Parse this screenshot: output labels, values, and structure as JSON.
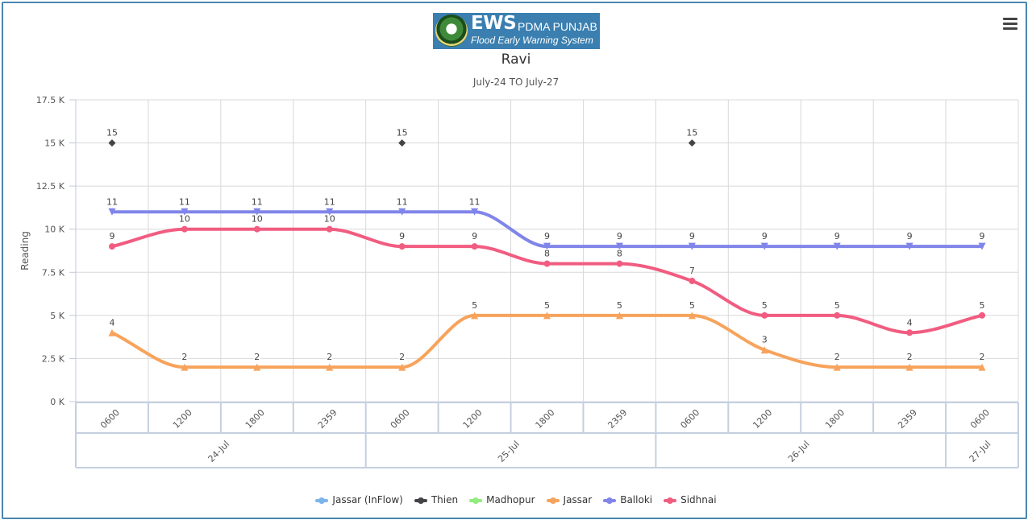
{
  "header": {
    "logo_main": "EWS",
    "logo_org": "PDMA PUNJAB",
    "logo_tagline": "Flood Early Warning System"
  },
  "icons": {
    "menu": "hamburger-menu-icon",
    "logo": "ews-emblem-icon"
  },
  "colors": {
    "frame": "#4a86b0",
    "Jassar (InFlow)": "#7cb5ec",
    "Thien": "#434348",
    "Madhopur": "#90ed7d",
    "Jassar": "#f7a35c",
    "Balloki": "#8085e9",
    "Sidhnai": "#f15c80"
  },
  "chart_data": {
    "type": "line",
    "title": "Ravi",
    "subtitle": "July-24 TO July-27",
    "ylabel": "Reading",
    "xlabel": "",
    "ylim": [
      0,
      17500
    ],
    "yticks": [
      0,
      2500,
      5000,
      7500,
      10000,
      12500,
      15000,
      17500
    ],
    "ytick_labels": [
      "0 K",
      "2.5 K",
      "5 K",
      "7.5 K",
      "10 K",
      "12.5 K",
      "15 K",
      "17.5 K"
    ],
    "grid": true,
    "legend_position": "bottom",
    "categories": [
      "0600",
      "1200",
      "1800",
      "2359",
      "0600",
      "1200",
      "1800",
      "2359",
      "0600",
      "1200",
      "1800",
      "2359",
      "0600"
    ],
    "category_groups": [
      {
        "label": "24-Jul",
        "span": 4
      },
      {
        "label": "25-Jul",
        "span": 4
      },
      {
        "label": "26-Jul",
        "span": 4
      },
      {
        "label": "27-Jul",
        "span": 1
      }
    ],
    "series": [
      {
        "name": "Jassar (InFlow)",
        "marker": "circle",
        "values": [
          null,
          null,
          null,
          null,
          null,
          null,
          null,
          null,
          null,
          null,
          null,
          null,
          null
        ],
        "labels": []
      },
      {
        "name": "Thien",
        "marker": "diamond",
        "values": [
          15000,
          null,
          null,
          null,
          15000,
          null,
          null,
          null,
          15000,
          null,
          null,
          null,
          null
        ],
        "labels": [
          "15",
          "",
          "",
          "",
          "15",
          "",
          "",
          "",
          "15",
          "",
          "",
          "",
          ""
        ]
      },
      {
        "name": "Madhopur",
        "marker": "circle",
        "values": [
          null,
          null,
          null,
          null,
          null,
          null,
          null,
          null,
          null,
          null,
          null,
          null,
          null
        ],
        "labels": []
      },
      {
        "name": "Jassar",
        "marker": "triangle",
        "values": [
          4000,
          2000,
          2000,
          2000,
          2000,
          5000,
          5000,
          5000,
          5000,
          3000,
          2000,
          2000,
          2000
        ],
        "labels": [
          "4",
          "2",
          "2",
          "2",
          "2",
          "5",
          "5",
          "5",
          "5",
          "3",
          "2",
          "2",
          "2"
        ]
      },
      {
        "name": "Balloki",
        "marker": "triangle-down",
        "values": [
          11000,
          11000,
          11000,
          11000,
          11000,
          11000,
          9000,
          9000,
          9000,
          9000,
          9000,
          9000,
          9000
        ],
        "labels": [
          "11",
          "11",
          "11",
          "11",
          "11",
          "11",
          "9",
          "9",
          "9",
          "9",
          "9",
          "9",
          "9"
        ]
      },
      {
        "name": "Sidhnai",
        "marker": "circle",
        "values": [
          9000,
          10000,
          10000,
          10000,
          9000,
          9000,
          8000,
          8000,
          7000,
          5000,
          5000,
          4000,
          5000
        ],
        "labels": [
          "9",
          "10",
          "10",
          "10",
          "9",
          "9",
          "8",
          "8",
          "7",
          "5",
          "5",
          "4",
          "5"
        ]
      }
    ]
  }
}
